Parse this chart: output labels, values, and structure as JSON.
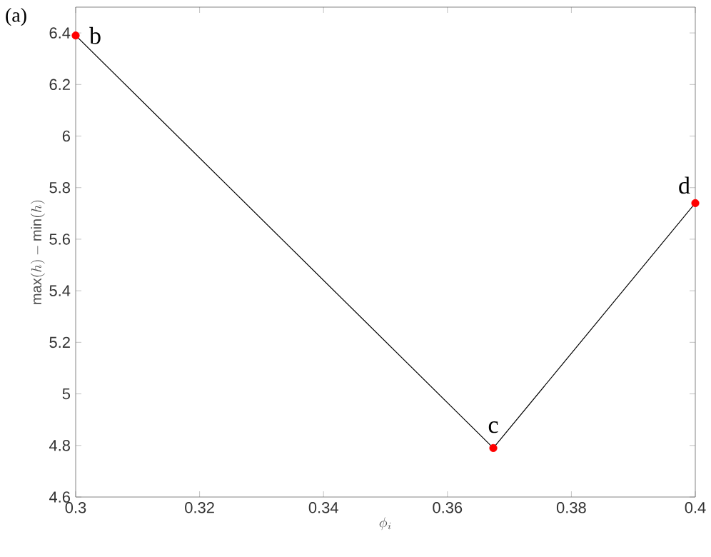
{
  "chart_data": {
    "type": "line",
    "xlabel": "\\phi_i",
    "ylabel": "\\max(h) - \\min(h)",
    "x": [
      0.3,
      0.3674,
      0.4
    ],
    "series": [
      {
        "color": "#000000",
        "values": [
          6.39,
          4.79,
          5.74
        ]
      },
      {
        "type": "scatter",
        "color": "#ff0000",
        "marker": "circle",
        "x": [
          0.3,
          0.3674,
          0.4
        ],
        "values": [
          6.39,
          4.79,
          5.74
        ]
      }
    ],
    "xlim": [
      0.3,
      0.4
    ],
    "ylim": [
      4.6,
      6.5
    ],
    "xticks": [
      0.3,
      0.32,
      0.34,
      0.36,
      0.38,
      0.4
    ],
    "yticks": [
      4.6,
      4.8,
      5,
      5.2,
      5.4,
      5.6,
      5.8,
      6,
      6.2,
      6.4
    ],
    "annotations": [
      "(a)",
      {
        "text": "b",
        "x": 0.3,
        "y": 6.39
      },
      {
        "text": "c",
        "x": 0.3674,
        "y": 4.79
      },
      {
        "text": "d",
        "x": 0.4,
        "y": 5.74
      }
    ],
    "grid": false
  }
}
